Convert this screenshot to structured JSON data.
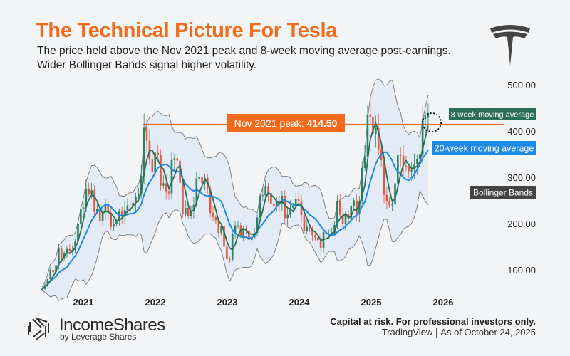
{
  "header": {
    "title": "The Technical Picture For Tesla",
    "subtitle_line1": "The price held above the Nov 2021 peak and 8-week moving average post-earnings.",
    "subtitle_line2": "Wider Bollinger Bands signal higher volatility."
  },
  "footer": {
    "disclaimer": "Capital at risk. For professional investors only.",
    "source": "TradingView",
    "as_of": "As of October 24, 2025",
    "brand": "IncomeShares",
    "brand_sub": "by Leverage Shares"
  },
  "chart_data": {
    "type": "candlestick",
    "ticker_logo": "tesla-logo",
    "start_date": "2020-06-05",
    "interval": "2 weeks",
    "closes": [
      59,
      67,
      80,
      100,
      95,
      110,
      147,
      124,
      135,
      145,
      140,
      143,
      163,
      200,
      232,
      235,
      276,
      264,
      272,
      225,
      231,
      206,
      226,
      243,
      224,
      193,
      200,
      207,
      226,
      215,
      229,
      239,
      237,
      245,
      258,
      263,
      303,
      407,
      379,
      338,
      311,
      353,
      349,
      282,
      287,
      270,
      265,
      337,
      341,
      336,
      288,
      221,
      234,
      216,
      227,
      240,
      297,
      300,
      288,
      299,
      275,
      223,
      214,
      207,
      180,
      194,
      150,
      123,
      122,
      178,
      196,
      196,
      173,
      190,
      185,
      165,
      170,
      180,
      213,
      260,
      261,
      281,
      266,
      242,
      238,
      248,
      244,
      260,
      212,
      219,
      234,
      238,
      253,
      248,
      218,
      183,
      193,
      191,
      175,
      170,
      164,
      147,
      181,
      177,
      178,
      178,
      197,
      248,
      219,
      200,
      220,
      210,
      238,
      250,
      220,
      248,
      320,
      345,
      436,
      431,
      394,
      406,
      361,
      337,
      262,
      248,
      239,
      241,
      287,
      349,
      346,
      325,
      323,
      313,
      316,
      329,
      340,
      350,
      426,
      429,
      439
    ],
    "y_ticks": [
      "100.00",
      "200.00",
      "300.00",
      "400.00",
      "500.00"
    ],
    "x_ticks": [
      "2021",
      "2022",
      "2023",
      "2024",
      "2025",
      "2026"
    ],
    "ylim": [
      0,
      520
    ],
    "peak": {
      "label": "Nov 2021 peak: ",
      "value": "414.50",
      "price": 414.5
    },
    "legend": {
      "ma8": "8-week moving average",
      "ma20": "20-week moving average",
      "bb": "Bollinger Bands"
    },
    "colors": {
      "up": "#2f7f62",
      "down": "#e4583f",
      "ma8": "#2a6e55",
      "ma20": "#1e88e5",
      "band": "#777777",
      "band_fill": "#e3ecf6",
      "peak": "#f26b1d"
    }
  }
}
